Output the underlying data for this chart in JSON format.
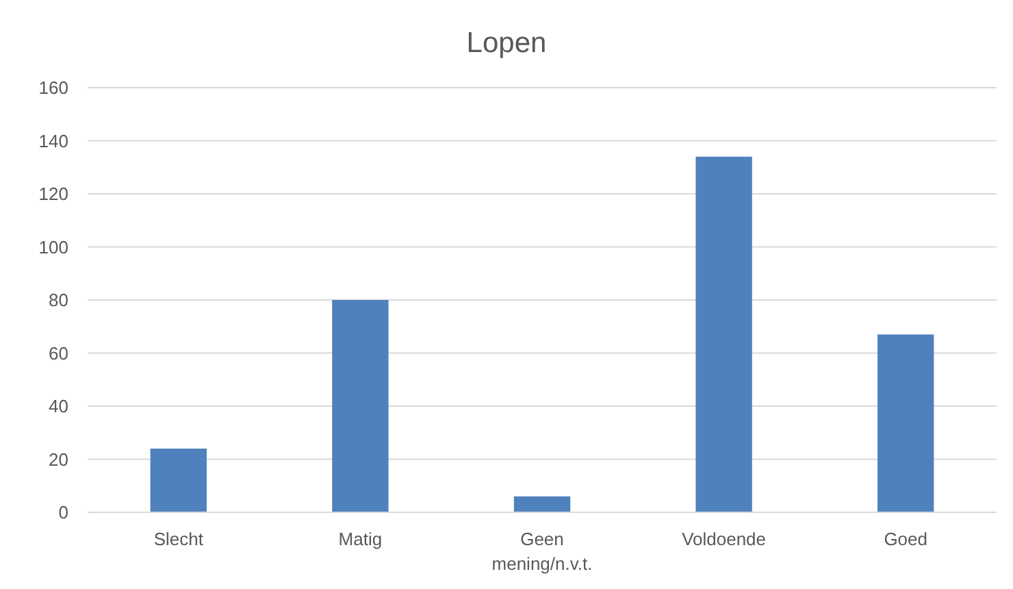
{
  "chart_data": {
    "type": "bar",
    "title": "Lopen",
    "categories": [
      "Slecht",
      "Matig",
      "Geen mening/n.v.t.",
      "Voldoende",
      "Goed"
    ],
    "values": [
      24,
      80,
      6,
      134,
      67
    ],
    "color": "#4f81bd",
    "ylim": [
      0,
      160
    ],
    "yticks": [
      0,
      20,
      40,
      60,
      80,
      100,
      120,
      140,
      160
    ],
    "grid": "y"
  }
}
